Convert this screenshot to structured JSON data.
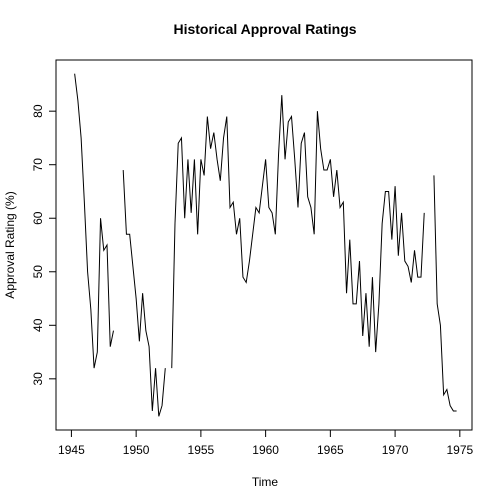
{
  "chart_data": {
    "type": "line",
    "title": "Historical Approval Ratings",
    "x_label": "Time",
    "y_label": "Approval Rating (%)",
    "x": [
      1945,
      1945.25,
      1945.5,
      1945.75,
      1946,
      1946.25,
      1946.5,
      1946.75,
      1947,
      1947.25,
      1947.5,
      1947.75,
      1948,
      1948.25,
      1948.5,
      1948.75,
      1949,
      1949.25,
      1949.5,
      1949.75,
      1950,
      1950.25,
      1950.5,
      1950.75,
      1951,
      1951.25,
      1951.5,
      1951.75,
      1952,
      1952.25,
      1952.5,
      1952.75,
      1953,
      1953.25,
      1953.5,
      1953.75,
      1954,
      1954.25,
      1954.5,
      1954.75,
      1955,
      1955.25,
      1955.5,
      1955.75,
      1956,
      1956.25,
      1956.5,
      1956.75,
      1957,
      1957.25,
      1957.5,
      1957.75,
      1958,
      1958.25,
      1958.5,
      1958.75,
      1959,
      1959.25,
      1959.5,
      1959.75,
      1960,
      1960.25,
      1960.5,
      1960.75,
      1961,
      1961.25,
      1961.5,
      1961.75,
      1962,
      1962.25,
      1962.5,
      1962.75,
      1963,
      1963.25,
      1963.5,
      1963.75,
      1964,
      1964.25,
      1964.5,
      1964.75,
      1965,
      1965.25,
      1965.5,
      1965.75,
      1966,
      1966.25,
      1966.5,
      1966.75,
      1967,
      1967.25,
      1967.5,
      1967.75,
      1968,
      1968.25,
      1968.5,
      1968.75,
      1969,
      1969.25,
      1969.5,
      1969.75,
      1970,
      1970.25,
      1970.5,
      1970.75,
      1971,
      1971.25,
      1971.5,
      1971.75,
      1972,
      1972.25,
      1972.5,
      1972.75,
      1973,
      1973.25,
      1973.5,
      1973.75,
      1974,
      1974.25,
      1974.5,
      1974.75
    ],
    "series": [
      {
        "name": "Approval",
        "color": "#000000",
        "values": [
          null,
          87,
          82,
          75,
          63,
          50,
          43,
          32,
          35,
          60,
          54,
          55,
          36,
          39,
          null,
          null,
          69,
          57,
          57,
          51,
          45,
          37,
          46,
          39,
          36,
          24,
          32,
          23,
          25,
          32,
          null,
          32,
          59,
          74,
          75,
          60,
          71,
          61,
          71,
          57,
          71,
          68,
          79,
          73,
          76,
          71,
          67,
          75,
          79,
          62,
          63,
          57,
          60,
          49,
          48,
          52,
          57,
          62,
          61,
          66,
          71,
          62,
          61,
          57,
          72,
          83,
          71,
          78,
          79,
          71,
          62,
          74,
          76,
          64,
          62,
          57,
          80,
          73,
          69,
          69,
          71,
          64,
          69,
          62,
          63,
          46,
          56,
          44,
          44,
          52,
          38,
          46,
          36,
          49,
          35,
          44,
          59,
          65,
          65,
          56,
          66,
          53,
          61,
          52,
          51,
          48,
          54,
          49,
          49,
          61,
          null,
          null,
          68,
          44,
          40,
          27,
          28,
          25,
          24,
          24
        ]
      }
    ],
    "xlim": [
      1943.81,
      1975.94
    ],
    "ylim": [
      20.44,
      89.56
    ],
    "xticks": [
      1945,
      1950,
      1955,
      1960,
      1965,
      1970,
      1975
    ],
    "yticks": [
      30,
      40,
      50,
      60,
      70,
      80
    ]
  }
}
